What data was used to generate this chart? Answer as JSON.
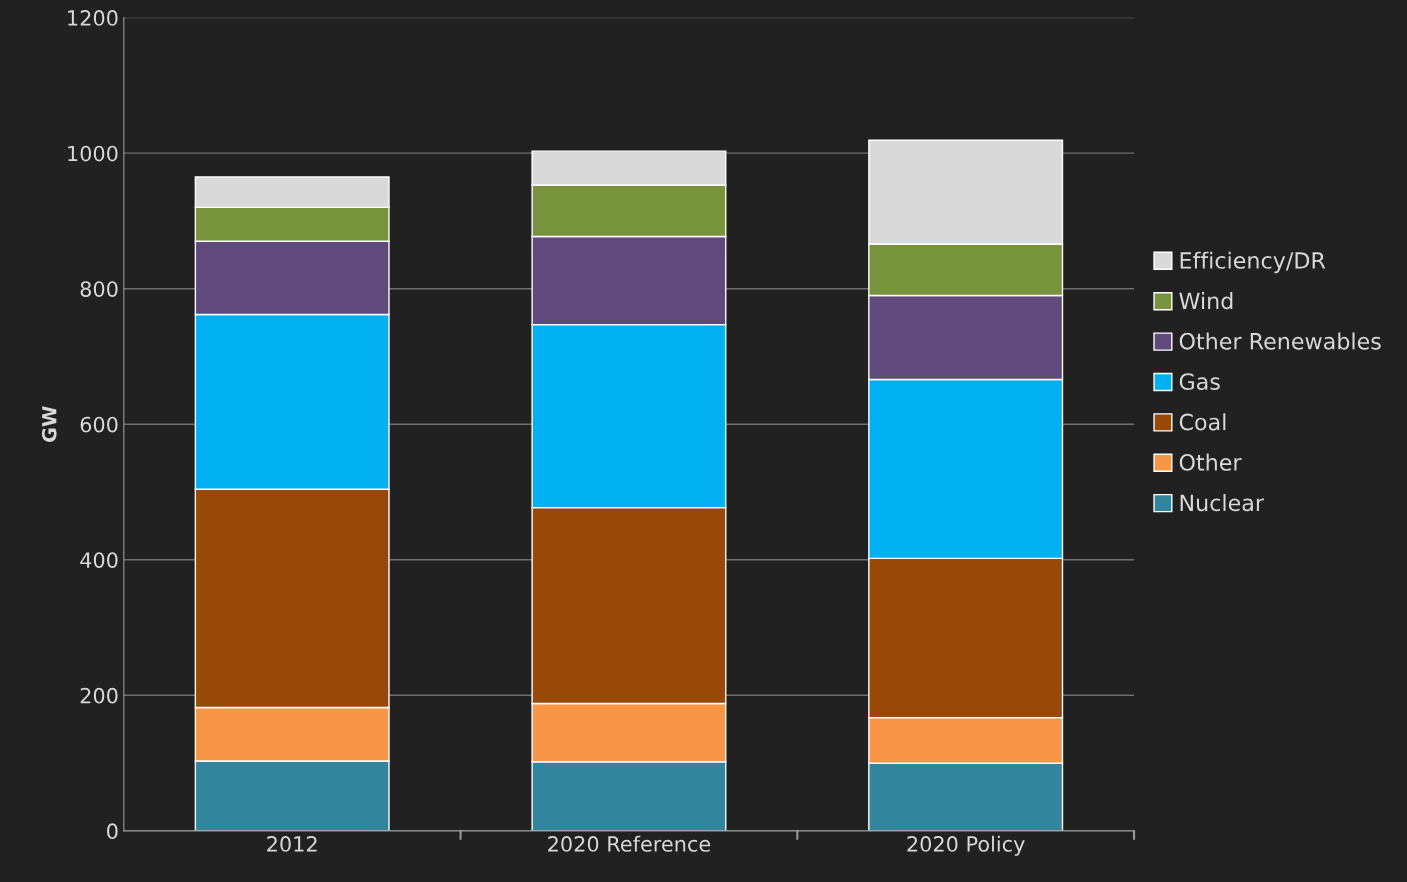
{
  "chart_data": {
    "type": "bar",
    "stacked": true,
    "ylabel": "GW",
    "categories": [
      "2012",
      "2020 Reference",
      "2020 Policy"
    ],
    "series": [
      {
        "name": "Nuclear",
        "color": "#31859c",
        "values": [
          103,
          102,
          100
        ]
      },
      {
        "name": "Other",
        "color": "#f79646",
        "values": [
          79,
          86,
          67
        ]
      },
      {
        "name": "Coal",
        "color": "#984807",
        "values": [
          322,
          289,
          235
        ]
      },
      {
        "name": "Gas",
        "color": "#00b0f0",
        "values": [
          258,
          270,
          264
        ]
      },
      {
        "name": "Other Renewables",
        "color": "#604a7b",
        "values": [
          108,
          130,
          124
        ]
      },
      {
        "name": "Wind",
        "color": "#77933c",
        "values": [
          50,
          76,
          76
        ]
      },
      {
        "name": "Efficiency/DR",
        "color": "#d9d9d9",
        "values": [
          45,
          50,
          153
        ]
      }
    ],
    "ylim": [
      0,
      1200
    ],
    "yticks": [
      0,
      200,
      400,
      600,
      800,
      1000,
      1200
    ],
    "grid": "y",
    "legend": "right"
  }
}
